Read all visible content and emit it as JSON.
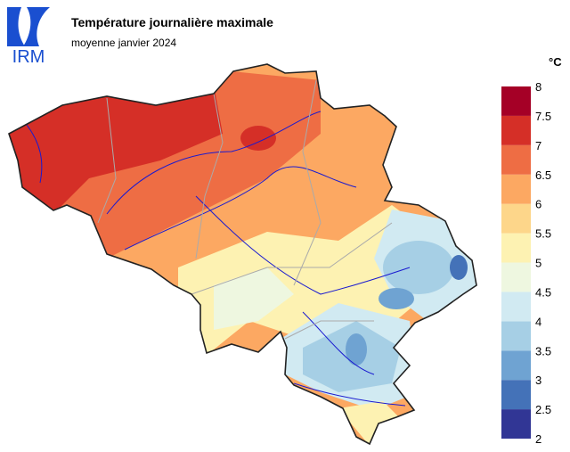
{
  "logo": "IRM",
  "header": {
    "title": "Température journalière maximale",
    "subtitle": "moyenne janvier 2024"
  },
  "legend": {
    "unit": "°C",
    "ticks": [
      2,
      2.5,
      3,
      3.5,
      4,
      4.5,
      5,
      5.5,
      6,
      6.5,
      7,
      7.5,
      8
    ],
    "colors": [
      "#313695",
      "#4472b8",
      "#6fa3d2",
      "#a6cfe5",
      "#d1eaf2",
      "#eef7e0",
      "#fdf2b2",
      "#fdd68a",
      "#fca862",
      "#ee6d44",
      "#d52f27",
      "#a50026"
    ]
  }
}
